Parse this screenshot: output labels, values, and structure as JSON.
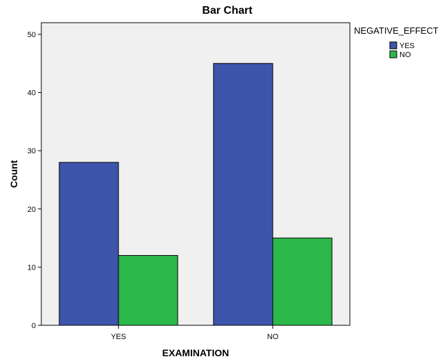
{
  "chart_data": {
    "type": "bar",
    "title": "Bar Chart",
    "xlabel": "EXAMINATION",
    "ylabel": "Count",
    "categories": [
      "YES",
      "NO"
    ],
    "legend_title": "NEGATIVE_EFFECT",
    "legend_position": "top-right",
    "series": [
      {
        "name": "YES",
        "values": [
          28,
          45
        ],
        "color": "#3d55ab"
      },
      {
        "name": "NO",
        "values": [
          12,
          15
        ],
        "color": "#2db84a"
      }
    ],
    "ylim": [
      0,
      52
    ],
    "yticks": [
      0,
      10,
      20,
      30,
      40,
      50
    ],
    "plot_background": "#f0f0f0",
    "grid": false
  }
}
